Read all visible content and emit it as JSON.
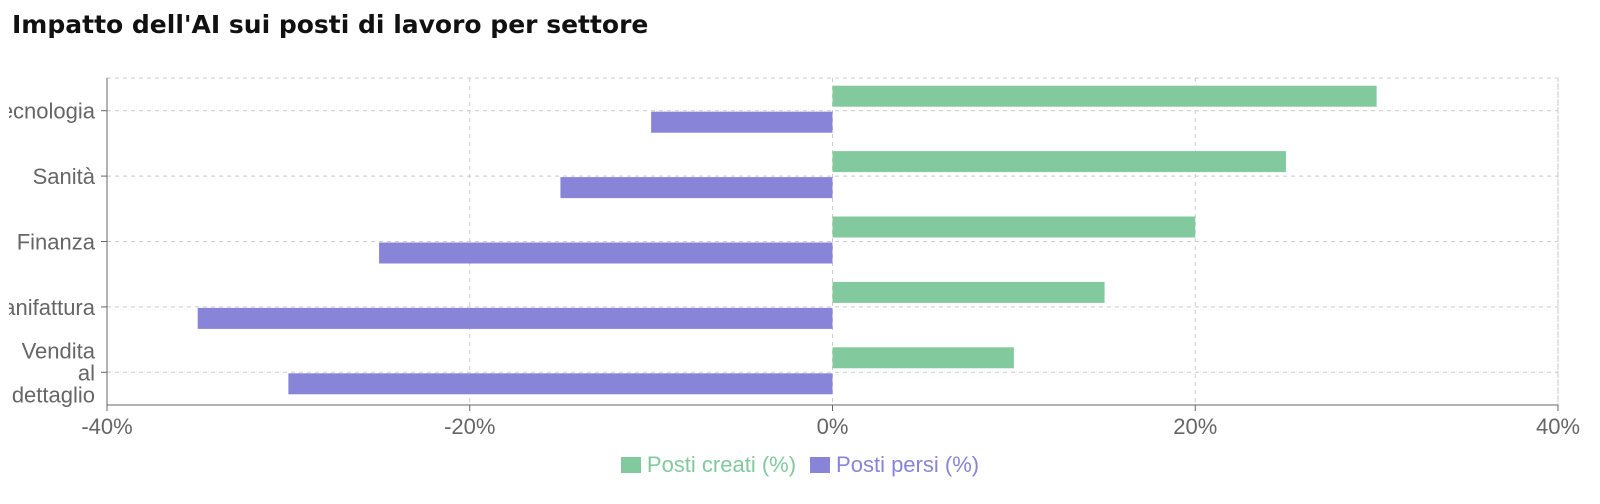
{
  "title": "Impatto dell'AI sui posti di lavoro per settore",
  "colors": {
    "created": "#82ca9d",
    "lost": "#8884d8",
    "axis": "#666666",
    "grid": "#cccccc",
    "tick_text": "#666666"
  },
  "chart_data": {
    "type": "bar",
    "orientation": "horizontal",
    "categories": [
      {
        "lines": [
          "Tecnologia"
        ]
      },
      {
        "lines": [
          "Sanità"
        ]
      },
      {
        "lines": [
          "Finanza"
        ]
      },
      {
        "lines": [
          "Manifattura"
        ]
      },
      {
        "lines": [
          "Vendita",
          "al",
          "dettaglio"
        ]
      }
    ],
    "series": [
      {
        "name": "Posti creati (%)",
        "color": "#82ca9d",
        "values": [
          30,
          25,
          20,
          15,
          10
        ]
      },
      {
        "name": "Posti persi (%)",
        "color": "#8884d8",
        "values": [
          -10,
          -15,
          -25,
          -35,
          -30
        ]
      }
    ],
    "xlim": [
      -40,
      40
    ],
    "xticks": [
      -40,
      -20,
      0,
      20,
      40
    ],
    "tick_format": "%",
    "grid": true,
    "legend": "bottom"
  }
}
